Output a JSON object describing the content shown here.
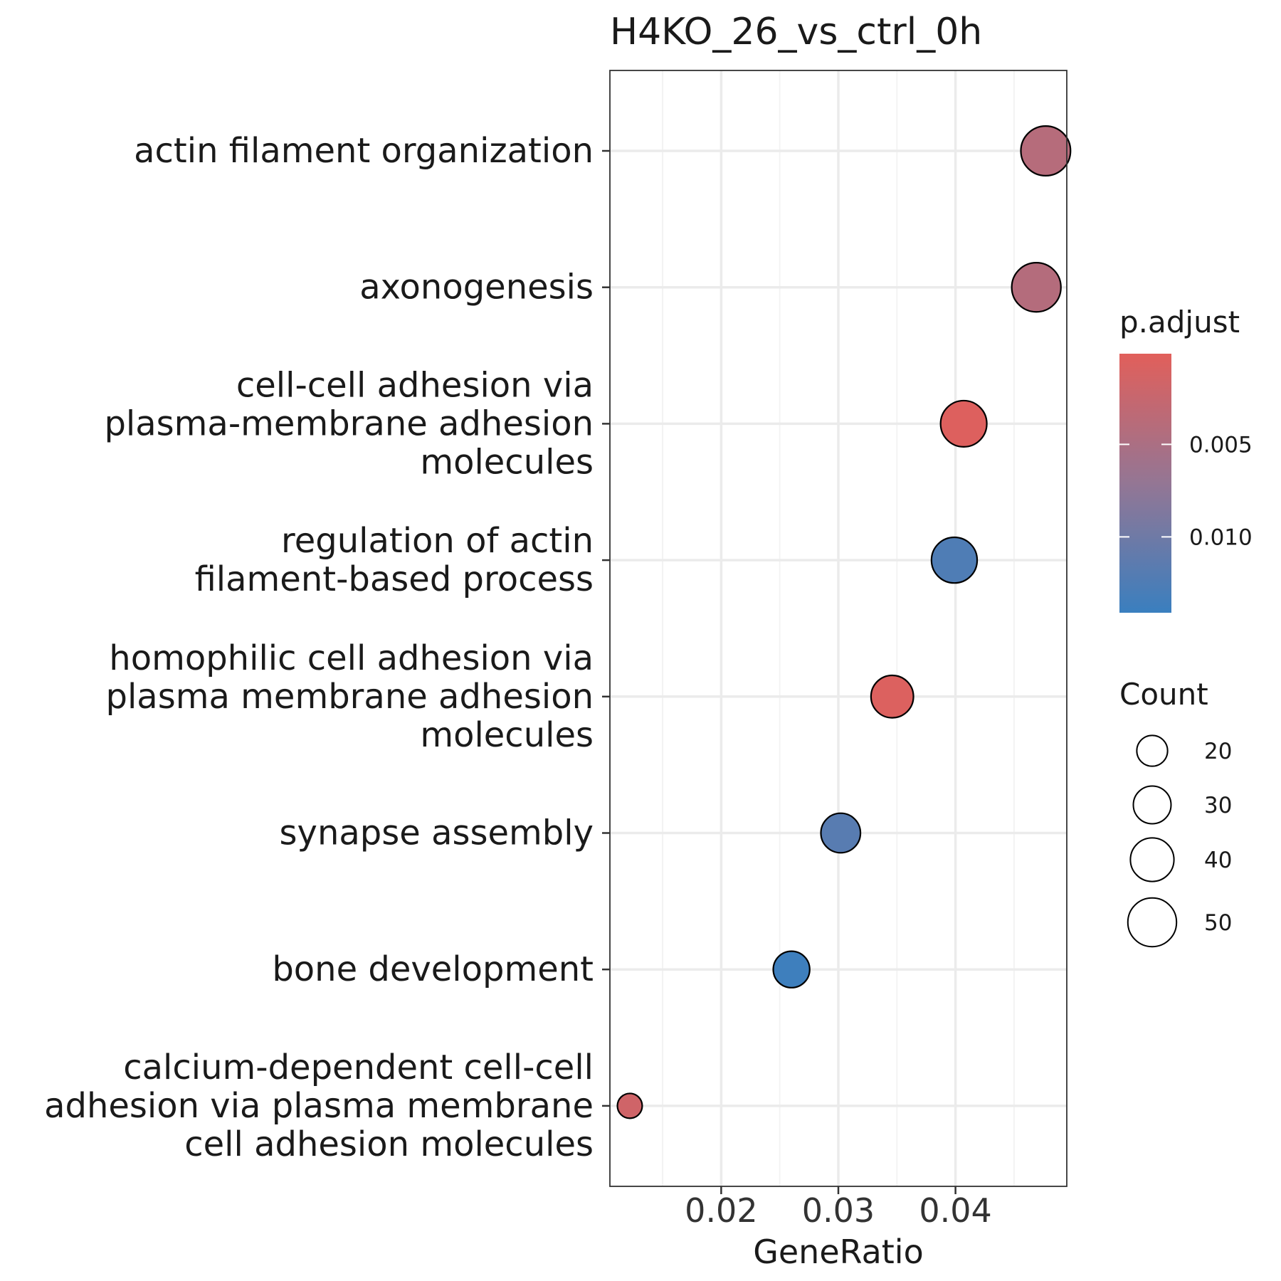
{
  "chart_data": {
    "type": "scatter",
    "title": "H4KO_26_vs_ctrl_0h",
    "xlabel": "GeneRatio",
    "ylabel": "",
    "xlim": [
      0.0105,
      0.0495
    ],
    "xticks": [
      0.02,
      0.03,
      0.04
    ],
    "xtick_labels": [
      "0.02",
      "0.03",
      "0.04"
    ],
    "grid": true,
    "categories": [
      [
        "actin filament organization"
      ],
      [
        "axonogenesis"
      ],
      [
        "cell-cell adhesion via",
        "plasma-membrane adhesion",
        "molecules"
      ],
      [
        "regulation of actin",
        "filament-based process"
      ],
      [
        "homophilic cell adhesion via",
        "plasma membrane adhesion",
        "molecules"
      ],
      [
        "synapse assembly"
      ],
      [
        "bone development"
      ],
      [
        "calcium-dependent cell-cell",
        "adhesion via plasma membrane",
        "cell adhesion molecules"
      ]
    ],
    "points": [
      {
        "x": 0.0477,
        "count": 52,
        "p_adjust": 0.004
      },
      {
        "x": 0.0469,
        "count": 51,
        "p_adjust": 0.0042
      },
      {
        "x": 0.0407,
        "count": 45,
        "p_adjust": 0.0005
      },
      {
        "x": 0.0399,
        "count": 44,
        "p_adjust": 0.0125
      },
      {
        "x": 0.0346,
        "count": 38,
        "p_adjust": 0.0006
      },
      {
        "x": 0.0302,
        "count": 33,
        "p_adjust": 0.0118
      },
      {
        "x": 0.026,
        "count": 28,
        "p_adjust": 0.0138
      },
      {
        "x": 0.0122,
        "count": 13,
        "p_adjust": 0.0017
      }
    ],
    "color_legend": {
      "title": "p.adjust",
      "ticks": [
        0.005,
        0.01
      ],
      "tick_labels": [
        "0.005",
        "0.010"
      ],
      "range": [
        0.0001,
        0.0141
      ],
      "colors": [
        "#e15f5b",
        "#3a7fbf"
      ],
      "placement": "right"
    },
    "size_legend": {
      "title": "Count",
      "values": [
        20,
        30,
        40,
        50
      ],
      "labels": [
        "20",
        "30",
        "40",
        "50"
      ],
      "placement": "right"
    }
  }
}
